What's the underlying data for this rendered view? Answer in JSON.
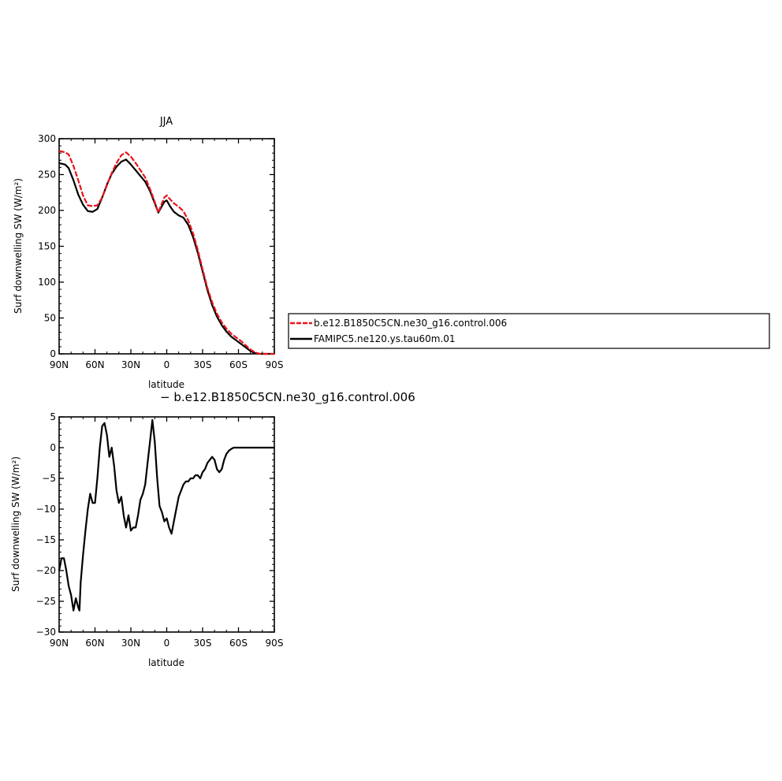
{
  "chart_data": [
    {
      "type": "line",
      "title": "JJA",
      "xlabel": "latitude",
      "ylabel": "Surf downwelling SW (W/m²)",
      "xlim": [
        90,
        -90
      ],
      "ylim": [
        0,
        300
      ],
      "x_ticks": [
        {
          "value": 90,
          "label": "90N"
        },
        {
          "value": 60,
          "label": "60N"
        },
        {
          "value": 30,
          "label": "30N"
        },
        {
          "value": 0,
          "label": "0"
        },
        {
          "value": -30,
          "label": "30S"
        },
        {
          "value": -60,
          "label": "60S"
        },
        {
          "value": -90,
          "label": "90S"
        }
      ],
      "y_ticks": [
        0,
        50,
        100,
        150,
        200,
        250,
        300
      ],
      "legend_position": "right",
      "series": [
        {
          "name": "b.e12.B1850C5CN.ne30_g16.control.006",
          "color": "#e8141b",
          "style": "dashed",
          "x": [
            90,
            85,
            82,
            78,
            74,
            70,
            66,
            62,
            58,
            54,
            50,
            46,
            42,
            38,
            34,
            30,
            26,
            22,
            18,
            14,
            10,
            7,
            4,
            2,
            0,
            -3,
            -6,
            -10,
            -14,
            -18,
            -22,
            -26,
            -30,
            -34,
            -38,
            -42,
            -46,
            -50,
            -54,
            -58,
            -62,
            -66,
            -70,
            -74,
            -78,
            -82,
            -86,
            -90
          ],
          "y": [
            283,
            281,
            278,
            262,
            242,
            221,
            207,
            206,
            207,
            218,
            235,
            252,
            266,
            277,
            281,
            275,
            266,
            256,
            246,
            230,
            212,
            197,
            210,
            218,
            221,
            215,
            210,
            205,
            199,
            186,
            168,
            145,
            118,
            92,
            72,
            56,
            44,
            35,
            28,
            23,
            18,
            12,
            6,
            2,
            0,
            0,
            0,
            0
          ]
        },
        {
          "name": "FAMIPC5.ne120.ys.tau60m.01",
          "color": "#000000",
          "style": "solid",
          "x": [
            90,
            85,
            82,
            78,
            74,
            70,
            66,
            62,
            58,
            54,
            50,
            46,
            42,
            38,
            34,
            30,
            26,
            22,
            18,
            14,
            10,
            7,
            4,
            2,
            0,
            -3,
            -6,
            -10,
            -14,
            -18,
            -22,
            -26,
            -30,
            -34,
            -38,
            -42,
            -46,
            -50,
            -54,
            -58,
            -62,
            -66,
            -70,
            -74,
            -78,
            -82,
            -86,
            -90
          ],
          "y": [
            266,
            264,
            259,
            242,
            222,
            208,
            199,
            198,
            202,
            218,
            236,
            251,
            261,
            268,
            271,
            264,
            256,
            248,
            240,
            227,
            210,
            197,
            206,
            212,
            214,
            205,
            198,
            193,
            190,
            180,
            163,
            141,
            115,
            89,
            68,
            52,
            40,
            31,
            24,
            19,
            14,
            9,
            4,
            1,
            0,
            0,
            0,
            0
          ]
        }
      ]
    },
    {
      "type": "line",
      "title": "− b.e12.B1850C5CN.ne30_g16.control.006",
      "xlabel": "latitude",
      "ylabel": "Surf downwelling SW (W/m²)",
      "xlim": [
        90,
        -90
      ],
      "ylim": [
        -30,
        5
      ],
      "x_ticks": [
        {
          "value": 90,
          "label": "90N"
        },
        {
          "value": 60,
          "label": "60N"
        },
        {
          "value": 30,
          "label": "30N"
        },
        {
          "value": 0,
          "label": "0"
        },
        {
          "value": -30,
          "label": "30S"
        },
        {
          "value": -60,
          "label": "60S"
        },
        {
          "value": -90,
          "label": "90S"
        }
      ],
      "y_ticks": [
        {
          "value": 5,
          "label": "5"
        },
        {
          "value": 0,
          "label": "0"
        },
        {
          "value": -5,
          "label": "−5"
        },
        {
          "value": -10,
          "label": "−10"
        },
        {
          "value": -15,
          "label": "−15"
        },
        {
          "value": -20,
          "label": "−20"
        },
        {
          "value": -25,
          "label": "−25"
        },
        {
          "value": -30,
          "label": "−30"
        }
      ],
      "series": [
        {
          "name": "",
          "color": "#000000",
          "style": "solid",
          "x": [
            90,
            88,
            86,
            84,
            82,
            80,
            78,
            76,
            74,
            73,
            72,
            70,
            68,
            66,
            64,
            62,
            60,
            58,
            56,
            54,
            52,
            50,
            48,
            46,
            44,
            42,
            40,
            38,
            36,
            34,
            32,
            30,
            28,
            26,
            24,
            22,
            20,
            18,
            16,
            14,
            12,
            10,
            8,
            6,
            4,
            2,
            0,
            -2,
            -4,
            -6,
            -8,
            -10,
            -12,
            -14,
            -16,
            -18,
            -20,
            -22,
            -24,
            -26,
            -28,
            -30,
            -32,
            -34,
            -36,
            -38,
            -40,
            -42,
            -44,
            -46,
            -48,
            -50,
            -52,
            -54,
            -56,
            -58,
            -60,
            -62,
            -64,
            -66,
            -68,
            -70,
            -72,
            -74,
            -76,
            -78,
            -80,
            -82,
            -84,
            -86,
            -88,
            -90
          ],
          "y": [
            -20,
            -18,
            -18,
            -20,
            -22.5,
            -24,
            -26.5,
            -24.5,
            -26,
            -26.5,
            -22,
            -17.5,
            -13.5,
            -10,
            -7.5,
            -9,
            -9,
            -5,
            0,
            3.5,
            4,
            2,
            -1.5,
            0,
            -3,
            -7,
            -9,
            -8,
            -11,
            -13,
            -11,
            -13.5,
            -13,
            -13,
            -11,
            -8.5,
            -7.5,
            -6,
            -2.5,
            1,
            4.5,
            1,
            -5,
            -9.5,
            -10.5,
            -12,
            -11.5,
            -13,
            -14,
            -12,
            -10,
            -8,
            -7,
            -6,
            -5.5,
            -5.5,
            -5,
            -5,
            -4.5,
            -4.5,
            -5,
            -4,
            -3.5,
            -2.5,
            -2,
            -1.5,
            -2,
            -3.5,
            -4,
            -3.5,
            -2,
            -1,
            -0.5,
            -0.2,
            0,
            0,
            0,
            0,
            0,
            0,
            0,
            0,
            0,
            0,
            0,
            0,
            0,
            0,
            0,
            0,
            0,
            0
          ]
        }
      ]
    }
  ]
}
